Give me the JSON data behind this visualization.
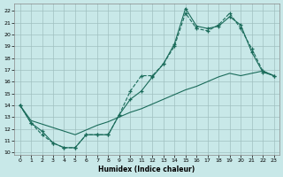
{
  "xlabel": "Humidex (Indice chaleur)",
  "background_color": "#c8e8e8",
  "grid_color": "#a0c0c0",
  "line_color": "#1a6b5a",
  "xlim": [
    -0.5,
    23.5
  ],
  "ylim": [
    9.8,
    22.6
  ],
  "xticks": [
    0,
    1,
    2,
    3,
    4,
    5,
    6,
    7,
    8,
    9,
    10,
    11,
    12,
    13,
    14,
    15,
    16,
    17,
    18,
    19,
    20,
    21,
    22,
    23
  ],
  "yticks": [
    10,
    11,
    12,
    13,
    14,
    15,
    16,
    17,
    18,
    19,
    20,
    21,
    22
  ],
  "series1_x": [
    0,
    1,
    2,
    3,
    4,
    5,
    6,
    7,
    8,
    9,
    10,
    11,
    12,
    13,
    14,
    15,
    16,
    17,
    18,
    19,
    20,
    21,
    22,
    23
  ],
  "series1_y": [
    14,
    12.5,
    11.5,
    10.8,
    10.4,
    10.4,
    11.5,
    11.5,
    11.5,
    13.2,
    15.2,
    16.5,
    16.5,
    17.5,
    19.0,
    21.8,
    20.5,
    20.3,
    20.8,
    21.8,
    20.5,
    18.8,
    16.9,
    16.5
  ],
  "series2_x": [
    0,
    1,
    2,
    3,
    4,
    5,
    6,
    7,
    8,
    9,
    10,
    11,
    12,
    13,
    14,
    15,
    16,
    17,
    18,
    19,
    20,
    21,
    22,
    23
  ],
  "series2_y": [
    14,
    12.5,
    11.8,
    10.8,
    10.4,
    10.4,
    11.5,
    11.5,
    11.5,
    13.2,
    14.5,
    15.2,
    16.4,
    17.5,
    19.2,
    22.2,
    20.7,
    20.5,
    20.7,
    21.5,
    20.8,
    18.5,
    16.8,
    16.5
  ],
  "series3_x": [
    0,
    1,
    2,
    3,
    4,
    5,
    6,
    7,
    8,
    9,
    10,
    11,
    12,
    13,
    14,
    15,
    16,
    17,
    18,
    19,
    20,
    21,
    22,
    23
  ],
  "series3_y": [
    14,
    12.7,
    12.4,
    12.1,
    11.8,
    11.5,
    11.9,
    12.3,
    12.6,
    13.0,
    13.4,
    13.7,
    14.1,
    14.5,
    14.9,
    15.3,
    15.6,
    16.0,
    16.4,
    16.7,
    16.5,
    16.7,
    16.9,
    16.5
  ]
}
